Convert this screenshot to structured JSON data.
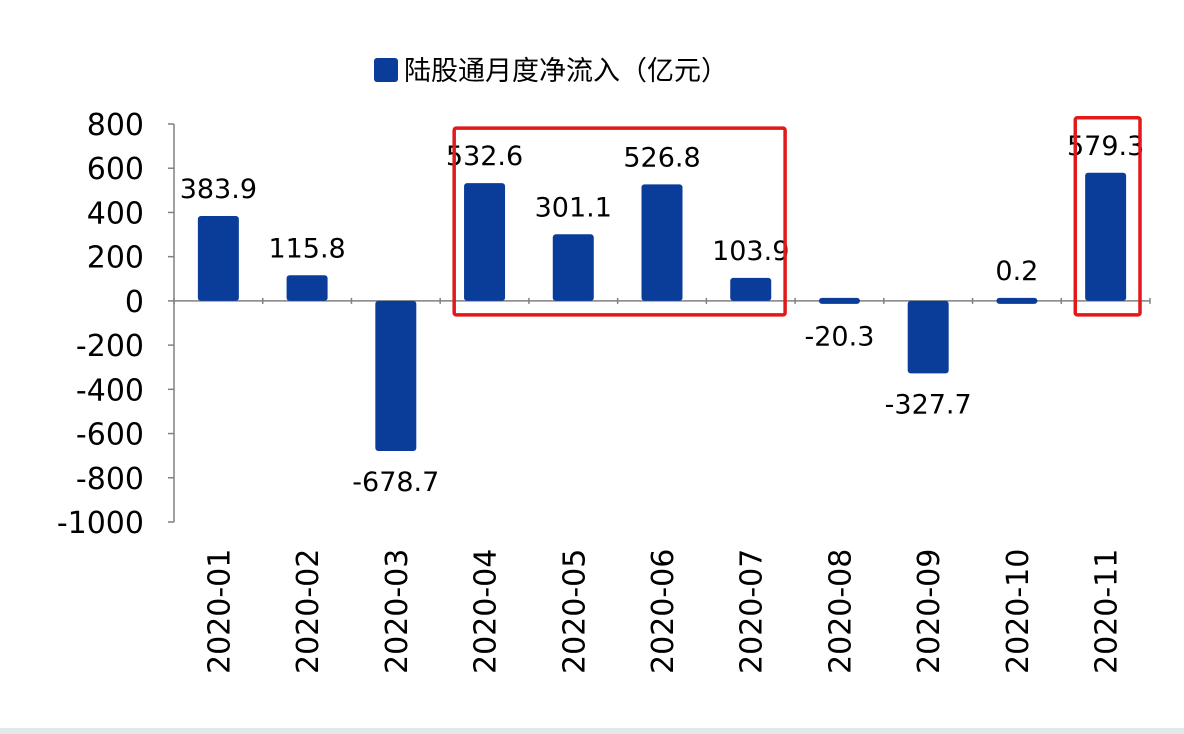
{
  "chart_data": {
    "type": "bar",
    "title": "",
    "xlabel": "",
    "ylabel": "",
    "legend": {
      "label": "陆股通月度净流入（亿元）",
      "position": "top-center"
    },
    "categories": [
      "2020-01",
      "2020-02",
      "2020-03",
      "2020-04",
      "2020-05",
      "2020-06",
      "2020-07",
      "2020-08",
      "2020-09",
      "2020-10",
      "2020-11"
    ],
    "series": [
      {
        "name": "陆股通月度净流入（亿元）",
        "values": [
          383.9,
          115.8,
          -678.7,
          532.6,
          301.1,
          526.8,
          103.9,
          -20.3,
          -327.7,
          0.2,
          579.3
        ],
        "value_labels": [
          "383.9",
          "115.8",
          "-678.7",
          "532.6",
          "301.1",
          "526.8",
          "103.9",
          "-20.3",
          "-327.7",
          "0.2",
          "579.3"
        ]
      }
    ],
    "ylim": [
      -1000,
      800
    ],
    "yticks": [
      800,
      600,
      400,
      200,
      0,
      -200,
      -400,
      -600,
      -800,
      -1000
    ],
    "grid": false,
    "colors": {
      "bar": "#0a3d9a",
      "highlight_box": "#e1191a",
      "bottom_band": "#dfe9ea"
    },
    "highlight_groups": [
      {
        "categories": [
          "2020-04",
          "2020-05",
          "2020-06",
          "2020-07"
        ]
      },
      {
        "categories": [
          "2020-11"
        ]
      }
    ]
  }
}
